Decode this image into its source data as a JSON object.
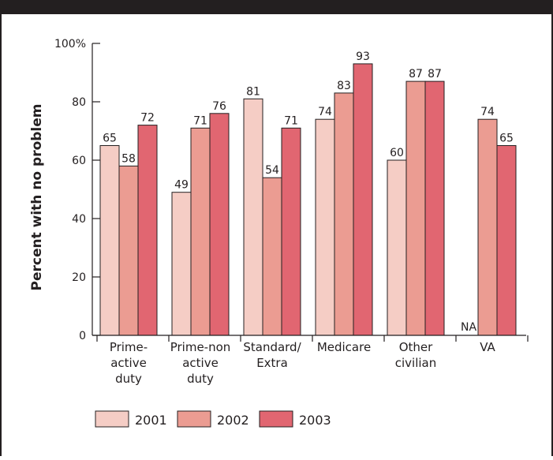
{
  "chart_data": {
    "type": "bar",
    "title": "",
    "xlabel": "",
    "ylabel": "Percent with no problem",
    "ylim": [
      0,
      100
    ],
    "yticks": [
      0,
      20,
      40,
      60,
      80,
      100
    ],
    "ytick_labels": [
      "0",
      "20",
      "40",
      "60",
      "80",
      "100%"
    ],
    "categories": [
      [
        "Prime-",
        "active",
        "duty"
      ],
      [
        "Prime-non",
        "active",
        "duty"
      ],
      [
        "Standard/",
        "Extra"
      ],
      [
        "Medicare"
      ],
      [
        "Other",
        "civilian"
      ],
      [
        "VA"
      ]
    ],
    "series": [
      {
        "name": "2001",
        "color": "#f5cdc5",
        "values": [
          65,
          49,
          81,
          74,
          60,
          null
        ],
        "labels": [
          "65",
          "49",
          "81",
          "74",
          "60",
          "NA"
        ]
      },
      {
        "name": "2002",
        "color": "#eb9c92",
        "values": [
          58,
          71,
          54,
          83,
          87,
          74
        ],
        "labels": [
          "58",
          "71",
          "54",
          "83",
          "87",
          "74"
        ]
      },
      {
        "name": "2003",
        "color": "#e16671",
        "values": [
          72,
          76,
          71,
          93,
          87,
          65
        ],
        "labels": [
          "72",
          "76",
          "71",
          "93",
          "87",
          "65"
        ]
      }
    ],
    "grid": false,
    "legend_position": "bottom-left"
  }
}
